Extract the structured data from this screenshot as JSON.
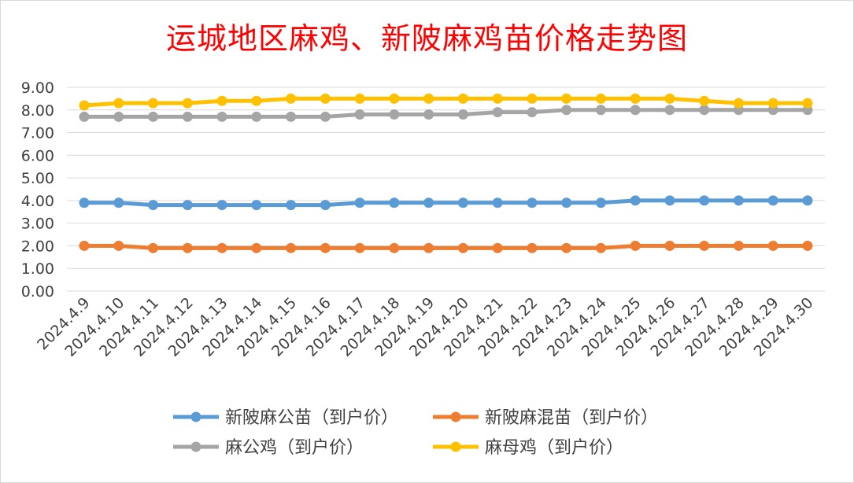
{
  "chart_data": {
    "type": "line",
    "title": "运城地区麻鸡、新陂麻鸡苗价格走势图",
    "categories": [
      "2024.4.9",
      "2024.4.10",
      "2024.4.11",
      "2024.4.12",
      "2024.4.13",
      "2024.4.14",
      "2024.4.15",
      "2024.4.16",
      "2024.4.17",
      "2024.4.18",
      "2024.4.19",
      "2024.4.20",
      "2024.4.21",
      "2024.4.22",
      "2024.4.23",
      "2024.4.24",
      "2024.4.25",
      "2024.4.26",
      "2024.4.27",
      "2024.4.28",
      "2024.4.29",
      "2024.4.30"
    ],
    "ylim": [
      0,
      9
    ],
    "yticks": [
      "0.00",
      "1.00",
      "2.00",
      "3.00",
      "4.00",
      "5.00",
      "6.00",
      "7.00",
      "8.00",
      "9.00"
    ],
    "grid": true,
    "legend_position": "bottom",
    "series": [
      {
        "name": "新陂麻公苗（到户价）",
        "color": "#5b9bd5",
        "values": [
          3.9,
          3.9,
          3.8,
          3.8,
          3.8,
          3.8,
          3.8,
          3.8,
          3.9,
          3.9,
          3.9,
          3.9,
          3.9,
          3.9,
          3.9,
          3.9,
          4.0,
          4.0,
          4.0,
          4.0,
          4.0,
          4.0
        ]
      },
      {
        "name": "新陂麻混苗（到户价）",
        "color": "#ed7d31",
        "values": [
          2.0,
          2.0,
          1.9,
          1.9,
          1.9,
          1.9,
          1.9,
          1.9,
          1.9,
          1.9,
          1.9,
          1.9,
          1.9,
          1.9,
          1.9,
          1.9,
          2.0,
          2.0,
          2.0,
          2.0,
          2.0,
          2.0
        ]
      },
      {
        "name": "麻公鸡（到户价）",
        "color": "#a5a5a5",
        "values": [
          7.7,
          7.7,
          7.7,
          7.7,
          7.7,
          7.7,
          7.7,
          7.7,
          7.8,
          7.8,
          7.8,
          7.8,
          7.9,
          7.9,
          8.0,
          8.0,
          8.0,
          8.0,
          8.0,
          8.0,
          8.0,
          8.0
        ]
      },
      {
        "name": "麻母鸡（到户价）",
        "color": "#ffc000",
        "values": [
          8.2,
          8.3,
          8.3,
          8.3,
          8.4,
          8.4,
          8.5,
          8.5,
          8.5,
          8.5,
          8.5,
          8.5,
          8.5,
          8.5,
          8.5,
          8.5,
          8.5,
          8.5,
          8.4,
          8.3,
          8.3,
          8.3
        ]
      }
    ]
  }
}
